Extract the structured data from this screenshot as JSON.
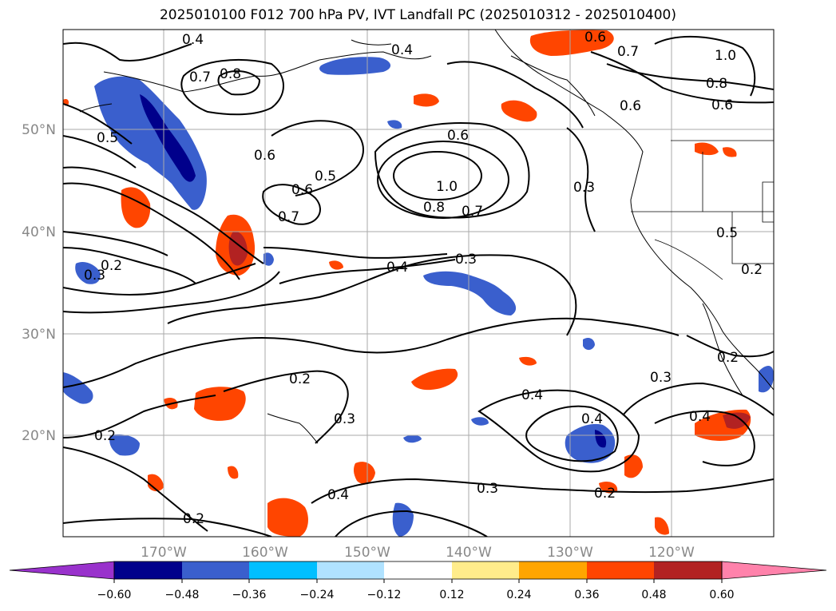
{
  "title": "2025010100 F012 700 hPa PV, IVT Landfall PC (2025010312 - 2025010400)",
  "lat_labels": [
    "50°N",
    "40°N",
    "30°N",
    "20°N"
  ],
  "lon_labels": [
    "170°W",
    "160°W",
    "150°W",
    "140°W",
    "130°W",
    "120°W"
  ],
  "contour_labels": [
    "0.4",
    "0.7",
    "0.8",
    "0.5",
    "0.6",
    "0.5",
    "0.6",
    "0.7",
    "1.0",
    "0.8",
    "0.7",
    "0.6",
    "0.4",
    "0.6",
    "0.7",
    "1.0",
    "0.8",
    "0.6",
    "0.6",
    "0.5",
    "0.2",
    "0.3",
    "0.4",
    "0.3",
    "0.2",
    "0.3",
    "0.2",
    "0.4",
    "0.3",
    "0.4",
    "0.4",
    "0.3",
    "0.2",
    "0.2",
    "0.4",
    "0.3",
    "0.2",
    "0.2"
  ],
  "colorbar": {
    "tick_labels": [
      "−0.60",
      "−0.48",
      "−0.36",
      "−0.24",
      "−0.12",
      "0.12",
      "0.24",
      "0.36",
      "0.48",
      "0.60"
    ],
    "colors": [
      "#9932cc",
      "#00008b",
      "#3a5fcd",
      "#00bfff",
      "#b0e2ff",
      "#ffffff",
      "#ffec8b",
      "#ffa500",
      "#ff4500",
      "#b22222",
      "#ff82ab"
    ]
  }
}
